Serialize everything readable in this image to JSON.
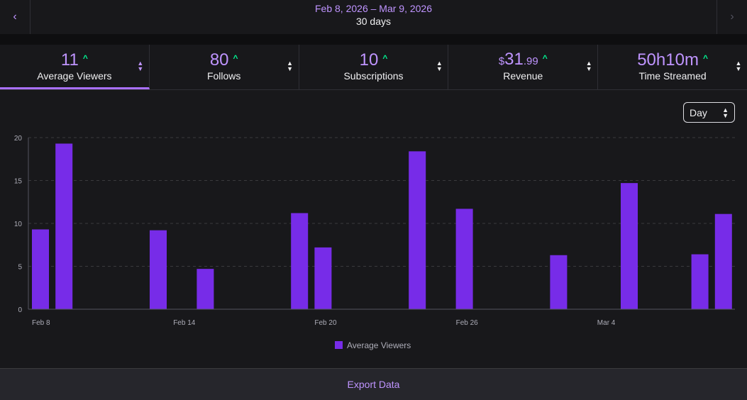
{
  "header": {
    "date_range": "Feb 8, 2026 – Mar 9, 2026",
    "days": "30 days",
    "prev_icon": "chevron-left-icon",
    "next_icon": "chevron-right-icon"
  },
  "stats": {
    "avg_viewers": {
      "value": "11",
      "label": "Average Viewers"
    },
    "follows": {
      "value": "80",
      "label": "Follows"
    },
    "subscriptions": {
      "value": "10",
      "label": "Subscriptions"
    },
    "revenue": {
      "currency": "$",
      "value": "31",
      "cents": ".99",
      "label": "Revenue"
    },
    "time_streamed": {
      "value": "50h10m",
      "label": "Time Streamed"
    },
    "trend_up": "^"
  },
  "granularity": {
    "selected": "Day"
  },
  "footer": {
    "export_label": "Export Data"
  },
  "colors": {
    "accent": "#772ce8",
    "text_accent": "#bf94ff",
    "trend": "#00f593"
  },
  "chart_data": {
    "type": "bar",
    "title": "",
    "xlabel": "",
    "ylabel": "",
    "ylim": [
      0,
      20
    ],
    "yticks": [
      0,
      5,
      10,
      15,
      20
    ],
    "tick_labels": [
      "Feb 8",
      "Feb 14",
      "Feb 20",
      "Feb 26",
      "Mar 4"
    ],
    "tick_indices": [
      0,
      6,
      12,
      18,
      24
    ],
    "categories": [
      "Feb 8",
      "Feb 9",
      "Feb 10",
      "Feb 11",
      "Feb 12",
      "Feb 13",
      "Feb 14",
      "Feb 15",
      "Feb 16",
      "Feb 17",
      "Feb 18",
      "Feb 19",
      "Feb 20",
      "Feb 21",
      "Feb 22",
      "Feb 23",
      "Feb 24",
      "Feb 25",
      "Feb 26",
      "Feb 27",
      "Feb 28",
      "Mar 1",
      "Mar 2",
      "Mar 3",
      "Mar 4",
      "Mar 5",
      "Mar 6",
      "Mar 7",
      "Mar 8",
      "Mar 9"
    ],
    "series": [
      {
        "name": "Average Viewers",
        "values": [
          9.3,
          19.3,
          0,
          0,
          0,
          9.2,
          0,
          4.7,
          0,
          0,
          0,
          11.2,
          7.2,
          0,
          0,
          0,
          18.4,
          0,
          11.7,
          0,
          0,
          0,
          6.3,
          0,
          0,
          14.7,
          0,
          0,
          6.4,
          11.1
        ]
      }
    ],
    "legend": "bottom-center"
  }
}
